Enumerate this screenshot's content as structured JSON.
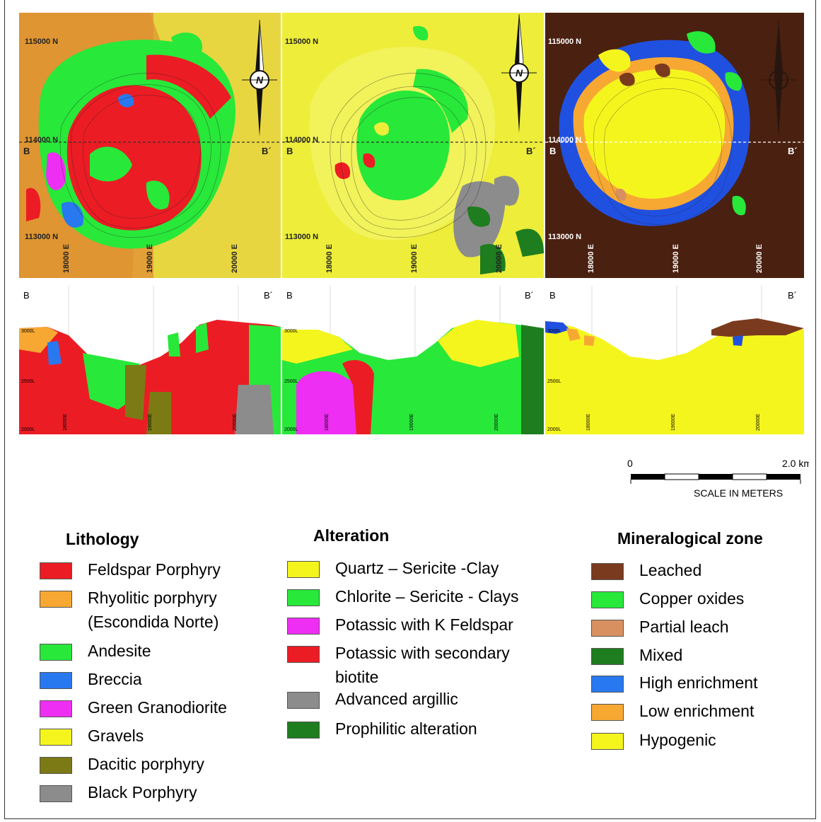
{
  "maps": [
    {
      "id": "lithology",
      "grid": {
        "n1": "115000 N",
        "n2": "114000 N",
        "n3": "113000 N",
        "e1": "18000 E",
        "e2": "19000 E",
        "e3": "20000 E"
      },
      "section_start": "B",
      "section_end": "B´",
      "north": "N"
    },
    {
      "id": "alteration",
      "grid": {
        "n1": "115000 N",
        "n2": "114000 N",
        "n3": "113000 N",
        "e1": "18000 E",
        "e2": "19000 E",
        "e3": "20000 E"
      },
      "section_start": "B",
      "section_end": "B´",
      "north": "N"
    },
    {
      "id": "mineralogical",
      "grid": {
        "n1": "115000 N",
        "n2": "114000 N",
        "n3": "113000 N",
        "e1": "18000 E",
        "e2": "19000 E",
        "e3": "20000 E"
      },
      "section_start": "B",
      "section_end": "B´",
      "north": "N"
    }
  ],
  "sections": {
    "start": "B",
    "end": "B´",
    "levels": [
      "3000L",
      "2500L",
      "2000L"
    ],
    "eastings": [
      "18000E",
      "19000E",
      "20000E"
    ]
  },
  "scale": {
    "zero": "0",
    "max": "2.0 km",
    "caption": "SCALE IN METERS"
  },
  "legends": {
    "lithology": {
      "title": "Lithology",
      "items": [
        {
          "label": "Feldspar Porphyry",
          "color": "#ec1c24"
        },
        {
          "label": "Rhyolitic porphyry",
          "label2": "(Escondida Norte)",
          "color": "#f7a833"
        },
        {
          "label": "Andesite",
          "color": "#28e83a"
        },
        {
          "label": "Breccia",
          "color": "#2878f0"
        },
        {
          "label": "Green Granodiorite",
          "color": "#ee2ef2"
        },
        {
          "label": "Gravels",
          "color": "#f5f51e"
        },
        {
          "label": "Dacitic porphyry",
          "color": "#7c7a14"
        },
        {
          "label": "Black Porphyry",
          "color": "#8c8c8c"
        }
      ]
    },
    "alteration": {
      "title": "Alteration",
      "items": [
        {
          "label": "Quartz – Sericite -Clay",
          "color": "#f5f51e"
        },
        {
          "label": "Chlorite – Sericite - Clays",
          "color": "#28e83a"
        },
        {
          "label": "Potassic with K Feldspar",
          "color": "#ee2ef2"
        },
        {
          "label": "Potassic with secondary",
          "label2": "biotite",
          "color": "#ec1c24"
        },
        {
          "label": "Advanced argillic",
          "color": "#8c8c8c"
        },
        {
          "label": "Prophilitic alteration",
          "color": "#1e7d1e"
        }
      ]
    },
    "mineralogical": {
      "title": "Mineralogical zone",
      "items": [
        {
          "label": "Leached",
          "color": "#7a3a1e"
        },
        {
          "label": "Copper oxides",
          "color": "#28e83a"
        },
        {
          "label": "Partial leach",
          "color": "#d99060"
        },
        {
          "label": "Mixed",
          "color": "#1e7d1e"
        },
        {
          "label": "High enrichment",
          "color": "#2878f0"
        },
        {
          "label": "Low enrichment",
          "color": "#f7a833"
        },
        {
          "label": "Hypogenic",
          "color": "#f5f51e"
        }
      ]
    }
  }
}
